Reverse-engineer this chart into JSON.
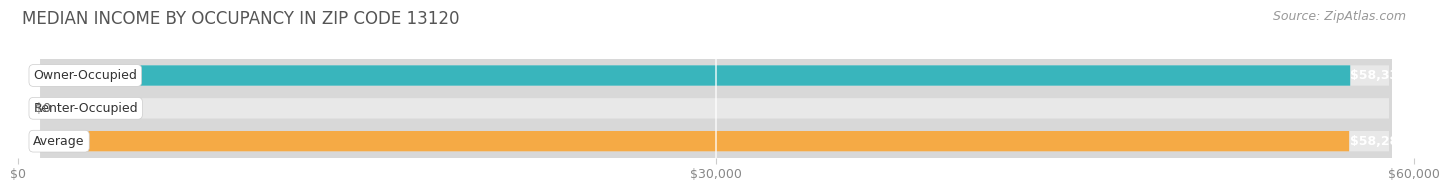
{
  "title": "MEDIAN INCOME BY OCCUPANCY IN ZIP CODE 13120",
  "source": "Source: ZipAtlas.com",
  "categories": [
    "Owner-Occupied",
    "Renter-Occupied",
    "Average"
  ],
  "values": [
    58333,
    0,
    58287
  ],
  "bar_colors": [
    "#39b5bc",
    "#c4a0ca",
    "#f5aa45"
  ],
  "bar_labels": [
    "$58,333",
    "$0",
    "$58,287"
  ],
  "label_value_inside": [
    true,
    false,
    true
  ],
  "xlim": [
    0,
    60000
  ],
  "xticks": [
    0,
    30000,
    60000
  ],
  "xticklabels": [
    "$0",
    "$30,000",
    "$60,000"
  ],
  "background_color": "#ffffff",
  "bar_bg_color": "#e8e8e8",
  "bar_bg_shadow": "#d8d8d8",
  "title_fontsize": 12,
  "source_fontsize": 9,
  "value_fontsize": 9,
  "cat_fontsize": 9,
  "bar_height": 0.62,
  "figsize": [
    14.06,
    1.97
  ]
}
